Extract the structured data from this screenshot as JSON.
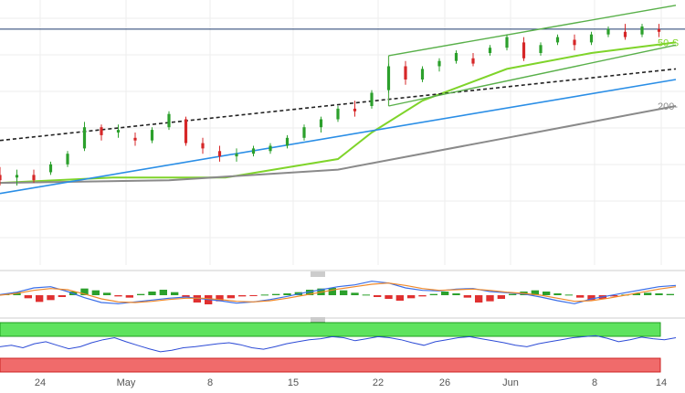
{
  "chart_data": [
    {
      "type": "candlestick",
      "panel": "price",
      "x_tick_labels": [
        "24",
        "May",
        "8",
        "15",
        "22",
        "26",
        "Jun",
        "8",
        "14"
      ],
      "ylim": [
        0,
        100
      ],
      "grid": true,
      "horizontal_line": {
        "y": 89
      },
      "candles": [
        {
          "x": 0,
          "o": 34,
          "h": 37,
          "l": 30,
          "c": 32
        },
        {
          "x": 3,
          "o": 33,
          "h": 36,
          "l": 30,
          "c": 34
        },
        {
          "x": 6,
          "o": 34,
          "h": 36,
          "l": 31,
          "c": 32
        },
        {
          "x": 9,
          "o": 35,
          "h": 39,
          "l": 34,
          "c": 38
        },
        {
          "x": 12,
          "o": 38,
          "h": 43,
          "l": 37,
          "c": 42
        },
        {
          "x": 15,
          "o": 44,
          "h": 54,
          "l": 43,
          "c": 52
        },
        {
          "x": 18,
          "o": 52,
          "h": 53,
          "l": 47,
          "c": 49
        },
        {
          "x": 21,
          "o": 50,
          "h": 53,
          "l": 48,
          "c": 51
        },
        {
          "x": 24,
          "o": 48,
          "h": 50,
          "l": 45,
          "c": 47
        },
        {
          "x": 27,
          "o": 47,
          "h": 52,
          "l": 46,
          "c": 51
        },
        {
          "x": 30,
          "o": 52,
          "h": 58,
          "l": 51,
          "c": 57
        },
        {
          "x": 33,
          "o": 55,
          "h": 56,
          "l": 45,
          "c": 46
        },
        {
          "x": 36,
          "o": 46,
          "h": 48,
          "l": 42,
          "c": 44
        },
        {
          "x": 39,
          "o": 43,
          "h": 45,
          "l": 39,
          "c": 41
        },
        {
          "x": 42,
          "o": 41,
          "h": 44,
          "l": 39,
          "c": 42
        },
        {
          "x": 45,
          "o": 42,
          "h": 45,
          "l": 41,
          "c": 44
        },
        {
          "x": 48,
          "o": 43,
          "h": 46,
          "l": 42,
          "c": 45
        },
        {
          "x": 51,
          "o": 45,
          "h": 49,
          "l": 44,
          "c": 48
        },
        {
          "x": 54,
          "o": 48,
          "h": 53,
          "l": 47,
          "c": 52
        },
        {
          "x": 57,
          "o": 52,
          "h": 56,
          "l": 50,
          "c": 55
        },
        {
          "x": 60,
          "o": 55,
          "h": 60,
          "l": 54,
          "c": 59
        },
        {
          "x": 63,
          "o": 59,
          "h": 62,
          "l": 56,
          "c": 58
        },
        {
          "x": 66,
          "o": 60,
          "h": 66,
          "l": 59,
          "c": 65
        },
        {
          "x": 69,
          "o": 66,
          "h": 76,
          "l": 65,
          "c": 75
        },
        {
          "x": 72,
          "o": 75,
          "h": 77,
          "l": 68,
          "c": 70
        },
        {
          "x": 75,
          "o": 70,
          "h": 75,
          "l": 69,
          "c": 74
        },
        {
          "x": 78,
          "o": 75,
          "h": 78,
          "l": 73,
          "c": 77
        },
        {
          "x": 81,
          "o": 77,
          "h": 81,
          "l": 76,
          "c": 80
        },
        {
          "x": 84,
          "o": 78,
          "h": 80,
          "l": 75,
          "c": 76
        },
        {
          "x": 87,
          "o": 80,
          "h": 83,
          "l": 79,
          "c": 82
        },
        {
          "x": 90,
          "o": 82,
          "h": 87,
          "l": 81,
          "c": 86
        },
        {
          "x": 93,
          "o": 84,
          "h": 86,
          "l": 77,
          "c": 78
        },
        {
          "x": 96,
          "o": 80,
          "h": 84,
          "l": 79,
          "c": 83
        },
        {
          "x": 99,
          "o": 84,
          "h": 87,
          "l": 83,
          "c": 86
        },
        {
          "x": 102,
          "o": 85,
          "h": 87,
          "l": 81,
          "c": 83
        },
        {
          "x": 105,
          "o": 84,
          "h": 88,
          "l": 83,
          "c": 87
        },
        {
          "x": 108,
          "o": 87,
          "h": 90,
          "l": 86,
          "c": 89
        },
        {
          "x": 111,
          "o": 88,
          "h": 91,
          "l": 85,
          "c": 86
        },
        {
          "x": 114,
          "o": 87,
          "h": 91,
          "l": 86,
          "c": 90
        },
        {
          "x": 117,
          "o": 89,
          "h": 91,
          "l": 86,
          "c": 88
        }
      ],
      "lines": [
        {
          "kind": "sma50",
          "color": "#7fd42a",
          "label": "50-S",
          "points": [
            [
              0,
              31
            ],
            [
              20,
              33
            ],
            [
              40,
              33
            ],
            [
              60,
              40
            ],
            [
              66,
              50
            ],
            [
              75,
              62
            ],
            [
              90,
              74
            ],
            [
              105,
              80
            ],
            [
              120,
              84
            ]
          ]
        },
        {
          "kind": "sma200",
          "color": "#8a8a8a",
          "label": "200-",
          "points": [
            [
              0,
              31
            ],
            [
              30,
              32
            ],
            [
              60,
              36
            ],
            [
              90,
              48
            ],
            [
              110,
              56
            ],
            [
              120,
              60
            ]
          ]
        },
        {
          "kind": "trend-support",
          "color": "#2a8ee6",
          "points": [
            [
              0,
              27
            ],
            [
              120,
              70
            ]
          ]
        },
        {
          "kind": "trend-dashed",
          "color": "#222222",
          "points": [
            [
              0,
              47
            ],
            [
              120,
              74
            ]
          ]
        },
        {
          "kind": "channel-upper",
          "color": "#59b04a",
          "points": [
            [
              69,
              79
            ],
            [
              120,
              98
            ]
          ]
        },
        {
          "kind": "channel-lower",
          "color": "#59b04a",
          "points": [
            [
              69,
              60
            ],
            [
              120,
              83
            ]
          ]
        }
      ]
    },
    {
      "type": "bar",
      "panel": "macd",
      "ylim": [
        -3,
        3
      ],
      "histogram": [
        0.2,
        0.5,
        -0.5,
        -1.1,
        -0.8,
        -0.3,
        0.6,
        1.1,
        0.8,
        0.4,
        -0.2,
        -0.4,
        0.2,
        0.6,
        0.9,
        0.5,
        -0.3,
        -1.2,
        -1.5,
        -1.0,
        -0.5,
        -0.2,
        -0.1,
        0.1,
        0.2,
        0.3,
        0.5,
        0.9,
        1.1,
        1.2,
        0.8,
        0.4,
        0.1,
        -0.3,
        -0.6,
        -0.9,
        -0.5,
        -0.2,
        0.2,
        0.6,
        0.3,
        -0.4,
        -1.2,
        -1.0,
        -0.6,
        0.2,
        0.6,
        0.8,
        0.6,
        0.3,
        0.1,
        -0.4,
        -0.8,
        -0.6,
        -0.2,
        0.1,
        0.3,
        0.4,
        0.3,
        0.2
      ],
      "series": [
        {
          "color": "#3a6ee8",
          "values": [
            0.1,
            0.5,
            1.2,
            1.4,
            0.6,
            -0.4,
            -1.2,
            -1.4,
            -1.1,
            -0.8,
            -0.5,
            -0.3,
            -0.6,
            -0.9,
            -1.3,
            -1.1,
            -0.7,
            -0.2,
            0.4,
            0.9,
            1.4,
            1.7,
            2.3,
            2.0,
            1.2,
            0.8,
            0.7,
            1.0,
            1.1,
            0.6,
            0.4,
            0.2,
            -0.3,
            -0.9,
            -1.4,
            -0.6,
            -0.1,
            0.4,
            0.9,
            1.4,
            1.6
          ]
        },
        {
          "color": "#f0892a",
          "values": [
            0.0,
            0.3,
            0.8,
            1.1,
            0.9,
            0.2,
            -0.6,
            -1.1,
            -1.2,
            -1.0,
            -0.7,
            -0.5,
            -0.5,
            -0.7,
            -1.0,
            -1.1,
            -0.9,
            -0.5,
            0.0,
            0.5,
            1.0,
            1.4,
            1.8,
            2.0,
            1.6,
            1.1,
            0.8,
            0.9,
            1.0,
            0.8,
            0.5,
            0.3,
            0.0,
            -0.5,
            -1.0,
            -0.9,
            -0.5,
            0.0,
            0.5,
            1.0,
            1.4
          ]
        }
      ]
    },
    {
      "type": "line",
      "panel": "rsi",
      "ylim": [
        0,
        100
      ],
      "overbought_zone": [
        70,
        100
      ],
      "oversold_zone": [
        0,
        30
      ],
      "series": [
        {
          "color": "#2d4bd6",
          "values": [
            52,
            55,
            50,
            58,
            62,
            55,
            48,
            52,
            60,
            66,
            70,
            62,
            55,
            48,
            42,
            45,
            50,
            52,
            55,
            58,
            60,
            56,
            50,
            47,
            52,
            58,
            62,
            66,
            68,
            72,
            70,
            64,
            68,
            72,
            70,
            66,
            60,
            55,
            62,
            66,
            70,
            72,
            68,
            64,
            60,
            55,
            52,
            58,
            62,
            66,
            70,
            72,
            74,
            69,
            62,
            66,
            71,
            68,
            66,
            70
          ]
        }
      ]
    }
  ]
}
